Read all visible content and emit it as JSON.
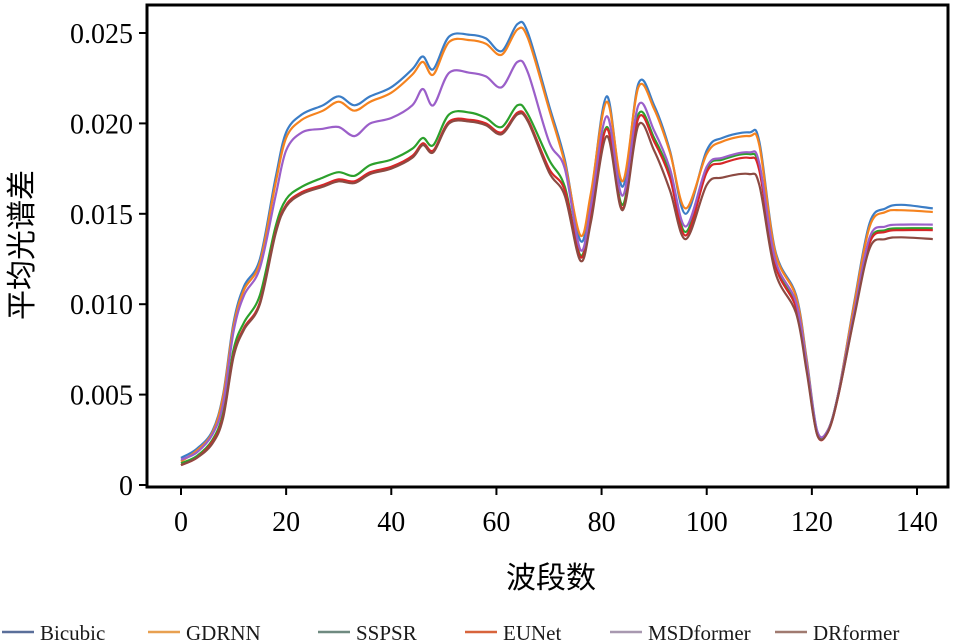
{
  "chart_data": {
    "type": "line",
    "title": "",
    "xlabel": "波段数",
    "ylabel": "平均光谱差",
    "xlim": [
      -6,
      147
    ],
    "ylim": [
      0,
      0.0262
    ],
    "xticks": [
      0,
      20,
      40,
      60,
      80,
      100,
      120,
      140
    ],
    "xtick_labels": [
      "0",
      "20",
      "40",
      "60",
      "80",
      "100",
      "120",
      "140"
    ],
    "yticks": [
      0,
      0.005,
      0.01,
      0.015,
      0.02,
      0.025
    ],
    "ytick_labels": [
      "0",
      "0.005",
      "0.010",
      "0.015",
      "0.020",
      "0.025"
    ],
    "grid": false,
    "legend_placement": "bottom",
    "x": [
      0,
      3,
      6,
      8,
      10,
      12,
      15,
      18,
      20,
      23,
      27,
      30,
      33,
      36,
      40,
      44,
      46,
      48,
      51,
      55,
      58,
      61,
      64,
      66,
      70,
      73,
      76,
      78,
      81,
      84,
      87,
      90,
      93,
      96,
      100,
      103,
      108,
      110,
      113,
      117,
      119,
      121,
      123,
      125,
      128,
      131,
      134,
      137,
      143
    ],
    "series": [
      {
        "name": "Bicubic",
        "color": "#3b7dc6",
        "legend_color": "#5a6f9a",
        "values": [
          0.0015,
          0.002,
          0.003,
          0.005,
          0.009,
          0.011,
          0.0125,
          0.017,
          0.0195,
          0.0205,
          0.021,
          0.0215,
          0.021,
          0.0215,
          0.022,
          0.023,
          0.0237,
          0.023,
          0.0248,
          0.0249,
          0.0247,
          0.024,
          0.0255,
          0.025,
          0.021,
          0.018,
          0.0135,
          0.016,
          0.0215,
          0.0165,
          0.0222,
          0.021,
          0.0185,
          0.015,
          0.0185,
          0.0192,
          0.0195,
          0.019,
          0.013,
          0.0105,
          0.007,
          0.003,
          0.003,
          0.005,
          0.01,
          0.0145,
          0.0153,
          0.0155,
          0.0153
        ]
      },
      {
        "name": "GDRNN",
        "color": "#f5831f",
        "legend_color": "#e8a050",
        "values": [
          0.0013,
          0.0019,
          0.0029,
          0.0049,
          0.0088,
          0.0108,
          0.0123,
          0.0167,
          0.0192,
          0.0202,
          0.0207,
          0.0212,
          0.0207,
          0.0212,
          0.0217,
          0.0227,
          0.0234,
          0.0227,
          0.0245,
          0.0246,
          0.0244,
          0.0238,
          0.0252,
          0.0247,
          0.0208,
          0.0178,
          0.0138,
          0.0162,
          0.0212,
          0.0168,
          0.022,
          0.0208,
          0.0184,
          0.0153,
          0.0183,
          0.019,
          0.0193,
          0.0188,
          0.0129,
          0.0104,
          0.0069,
          0.0029,
          0.003,
          0.005,
          0.0099,
          0.0143,
          0.0151,
          0.0152,
          0.0151
        ]
      },
      {
        "name": "SSPSR",
        "color": "#2ca02c",
        "legend_color": "#6f8a80",
        "values": [
          0.0012,
          0.0016,
          0.0025,
          0.004,
          0.0075,
          0.009,
          0.0105,
          0.0143,
          0.0158,
          0.0165,
          0.017,
          0.0173,
          0.0171,
          0.0177,
          0.018,
          0.0186,
          0.0192,
          0.0188,
          0.0205,
          0.0206,
          0.0203,
          0.0198,
          0.021,
          0.0205,
          0.018,
          0.0165,
          0.0127,
          0.0152,
          0.0198,
          0.0155,
          0.0205,
          0.0192,
          0.0172,
          0.014,
          0.0175,
          0.018,
          0.0183,
          0.0176,
          0.0124,
          0.01,
          0.0066,
          0.0029,
          0.003,
          0.005,
          0.0094,
          0.0135,
          0.0141,
          0.0142,
          0.0142
        ]
      },
      {
        "name": "EUNet",
        "color": "#d62728",
        "legend_color": "#d8643c",
        "values": [
          0.0011,
          0.0015,
          0.0024,
          0.0038,
          0.0072,
          0.0087,
          0.0101,
          0.014,
          0.0155,
          0.0162,
          0.0166,
          0.0169,
          0.0168,
          0.0173,
          0.0176,
          0.0182,
          0.0189,
          0.0185,
          0.0201,
          0.0202,
          0.02,
          0.0195,
          0.0206,
          0.0202,
          0.0175,
          0.0163,
          0.0126,
          0.015,
          0.0197,
          0.0153,
          0.0203,
          0.019,
          0.017,
          0.0138,
          0.0173,
          0.0178,
          0.0181,
          0.0174,
          0.0122,
          0.0098,
          0.0065,
          0.0028,
          0.0029,
          0.0049,
          0.0093,
          0.0134,
          0.014,
          0.0141,
          0.0141
        ]
      },
      {
        "name": "MSDformer",
        "color": "#9b5fc9",
        "legend_color": "#a898b0",
        "values": [
          0.0014,
          0.0018,
          0.0028,
          0.0045,
          0.0085,
          0.0105,
          0.012,
          0.016,
          0.0185,
          0.0195,
          0.0197,
          0.0198,
          0.0193,
          0.02,
          0.0203,
          0.021,
          0.0219,
          0.021,
          0.0228,
          0.0228,
          0.0226,
          0.022,
          0.0234,
          0.0228,
          0.019,
          0.0175,
          0.013,
          0.0155,
          0.0204,
          0.016,
          0.021,
          0.0196,
          0.0175,
          0.0143,
          0.0176,
          0.0181,
          0.0184,
          0.0178,
          0.0125,
          0.0101,
          0.0067,
          0.003,
          0.003,
          0.005,
          0.0095,
          0.0137,
          0.0143,
          0.0144,
          0.0144
        ]
      },
      {
        "name": "DRformer",
        "color": "#8c4a42",
        "legend_color": "#a07a70",
        "values": [
          0.0011,
          0.0015,
          0.0023,
          0.0037,
          0.0071,
          0.0086,
          0.01,
          0.0139,
          0.0154,
          0.0161,
          0.0165,
          0.0168,
          0.0167,
          0.0172,
          0.0175,
          0.0181,
          0.0188,
          0.0184,
          0.02,
          0.0201,
          0.0199,
          0.0194,
          0.0205,
          0.0201,
          0.0173,
          0.016,
          0.0124,
          0.0146,
          0.0193,
          0.0152,
          0.0199,
          0.0185,
          0.0163,
          0.0136,
          0.0166,
          0.017,
          0.0172,
          0.0166,
          0.0118,
          0.0095,
          0.0063,
          0.0028,
          0.0029,
          0.0049,
          0.0092,
          0.0131,
          0.0136,
          0.0137,
          0.0136
        ]
      }
    ]
  }
}
